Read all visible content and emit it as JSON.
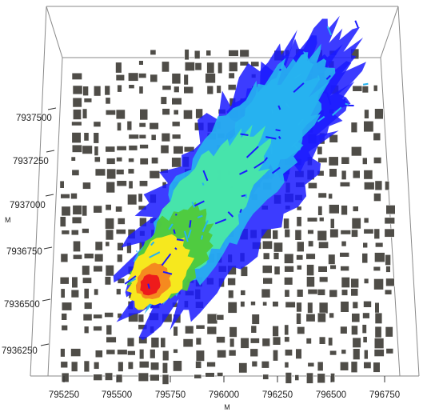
{
  "axes": {
    "x_title": "M",
    "y_title": "M",
    "x_ticks": [
      "795250",
      "795500",
      "795750",
      "796000",
      "796250",
      "796500",
      "796750"
    ],
    "y_ticks": [
      "7937500",
      "7937250",
      "7937000",
      "7936750",
      "7936500",
      "7936250"
    ]
  },
  "legend_colors": {
    "buildings": "#4f4d48",
    "level_1": "#1a1aff",
    "level_2": "#27b4f0",
    "level_3": "#49e7a6",
    "level_4": "#50c93a",
    "level_5": "#f6e81e",
    "level_6": "#f58a1f",
    "level_7": "#ee1b1b"
  }
}
